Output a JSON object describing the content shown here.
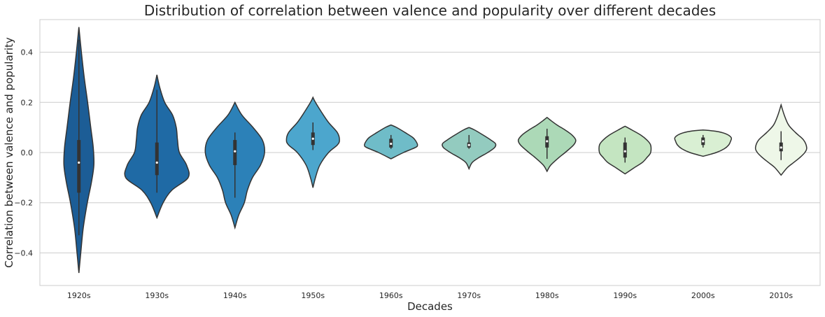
{
  "chart_data": {
    "type": "violin",
    "title": "Distribution of correlation between valence and popularity over different decades",
    "xlabel": "Decades",
    "ylabel": "Correlation between valence and popularity",
    "ylim": [
      -0.53,
      0.53
    ],
    "yticks": [
      -0.4,
      -0.2,
      0.0,
      0.2,
      0.4
    ],
    "ytick_labels": [
      "−0.4",
      "−0.2",
      "0.0",
      "0.2",
      "0.4"
    ],
    "grid": "horizontal",
    "categories": [
      "1920s",
      "1930s",
      "1940s",
      "1950s",
      "1960s",
      "1970s",
      "1980s",
      "1990s",
      "2000s",
      "2010s"
    ],
    "series": [
      {
        "category": "1920s",
        "color": "#1c5d96",
        "kde_min": -0.48,
        "kde_max": 0.5,
        "q1": -0.16,
        "median": -0.04,
        "q3": 0.05,
        "whisker_low": -0.33,
        "whisker_high": 0.45,
        "density": [
          [
            -0.48,
            0.0
          ],
          [
            -0.4,
            0.06
          ],
          [
            -0.3,
            0.14
          ],
          [
            -0.2,
            0.27
          ],
          [
            -0.12,
            0.4
          ],
          [
            -0.05,
            0.48
          ],
          [
            0.02,
            0.46
          ],
          [
            0.1,
            0.38
          ],
          [
            0.2,
            0.28
          ],
          [
            0.3,
            0.17
          ],
          [
            0.4,
            0.08
          ],
          [
            0.5,
            0.0
          ]
        ]
      },
      {
        "category": "1930s",
        "color": "#1f6aa5",
        "kde_min": -0.26,
        "kde_max": 0.31,
        "q1": -0.09,
        "median": -0.04,
        "q3": 0.04,
        "whisker_low": -0.16,
        "whisker_high": 0.25,
        "density": [
          [
            -0.26,
            0.0
          ],
          [
            -0.2,
            0.2
          ],
          [
            -0.15,
            0.48
          ],
          [
            -0.1,
            1.0
          ],
          [
            -0.05,
            0.95
          ],
          [
            0.0,
            0.72
          ],
          [
            0.05,
            0.66
          ],
          [
            0.1,
            0.62
          ],
          [
            0.15,
            0.5
          ],
          [
            0.2,
            0.25
          ],
          [
            0.26,
            0.09
          ],
          [
            0.31,
            0.0
          ]
        ]
      },
      {
        "category": "1940s",
        "color": "#2c81b8",
        "kde_min": -0.3,
        "kde_max": 0.2,
        "q1": -0.05,
        "median": 0.005,
        "q3": 0.05,
        "whisker_low": -0.18,
        "whisker_high": 0.08,
        "density": [
          [
            -0.3,
            0.0
          ],
          [
            -0.25,
            0.12
          ],
          [
            -0.2,
            0.3
          ],
          [
            -0.15,
            0.4
          ],
          [
            -0.1,
            0.56
          ],
          [
            -0.05,
            0.82
          ],
          [
            0.0,
            0.95
          ],
          [
            0.05,
            0.88
          ],
          [
            0.1,
            0.58
          ],
          [
            0.15,
            0.22
          ],
          [
            0.2,
            0.0
          ]
        ]
      },
      {
        "category": "1950s",
        "color": "#4ca6cd",
        "kde_min": -0.14,
        "kde_max": 0.22,
        "q1": 0.03,
        "median": 0.055,
        "q3": 0.08,
        "whisker_low": 0.01,
        "whisker_high": 0.12,
        "density": [
          [
            -0.14,
            0.0
          ],
          [
            -0.1,
            0.08
          ],
          [
            -0.05,
            0.22
          ],
          [
            0.0,
            0.5
          ],
          [
            0.03,
            0.78
          ],
          [
            0.05,
            0.85
          ],
          [
            0.08,
            0.78
          ],
          [
            0.12,
            0.5
          ],
          [
            0.16,
            0.28
          ],
          [
            0.2,
            0.08
          ],
          [
            0.22,
            0.0
          ]
        ]
      },
      {
        "category": "1960s",
        "color": "#6fbcc8",
        "kde_min": -0.025,
        "kde_max": 0.11,
        "q1": 0.02,
        "median": 0.035,
        "q3": 0.055,
        "whisker_low": 0.015,
        "whisker_high": 0.07,
        "density": [
          [
            -0.025,
            0.0
          ],
          [
            0.0,
            0.4
          ],
          [
            0.02,
            0.78
          ],
          [
            0.03,
            0.85
          ],
          [
            0.045,
            0.8
          ],
          [
            0.06,
            0.7
          ],
          [
            0.08,
            0.45
          ],
          [
            0.1,
            0.18
          ],
          [
            0.11,
            0.0
          ]
        ]
      },
      {
        "category": "1970s",
        "color": "#93cbbf",
        "kde_min": -0.065,
        "kde_max": 0.1,
        "q1": 0.02,
        "median": 0.03,
        "q3": 0.04,
        "whisker_low": 0.015,
        "whisker_high": 0.07,
        "density": [
          [
            -0.065,
            0.0
          ],
          [
            -0.04,
            0.1
          ],
          [
            -0.02,
            0.32
          ],
          [
            0.0,
            0.6
          ],
          [
            0.02,
            0.82
          ],
          [
            0.035,
            0.85
          ],
          [
            0.05,
            0.7
          ],
          [
            0.07,
            0.45
          ],
          [
            0.09,
            0.18
          ],
          [
            0.1,
            0.0
          ]
        ]
      },
      {
        "category": "1980s",
        "color": "#acd9b7",
        "kde_min": -0.075,
        "kde_max": 0.14,
        "q1": 0.02,
        "median": 0.045,
        "q3": 0.065,
        "whisker_low": -0.025,
        "whisker_high": 0.095,
        "density": [
          [
            -0.075,
            0.0
          ],
          [
            -0.05,
            0.12
          ],
          [
            -0.02,
            0.38
          ],
          [
            0.0,
            0.58
          ],
          [
            0.03,
            0.85
          ],
          [
            0.05,
            0.92
          ],
          [
            0.07,
            0.8
          ],
          [
            0.09,
            0.58
          ],
          [
            0.11,
            0.32
          ],
          [
            0.13,
            0.1
          ],
          [
            0.14,
            0.0
          ]
        ]
      },
      {
        "category": "1990s",
        "color": "#c4e5c1",
        "kde_min": -0.085,
        "kde_max": 0.105,
        "q1": -0.02,
        "median": 0.005,
        "q3": 0.04,
        "whisker_low": -0.04,
        "whisker_high": 0.06,
        "density": [
          [
            -0.085,
            0.0
          ],
          [
            -0.06,
            0.3
          ],
          [
            -0.04,
            0.55
          ],
          [
            -0.02,
            0.7
          ],
          [
            0.0,
            0.82
          ],
          [
            0.03,
            0.82
          ],
          [
            0.05,
            0.7
          ],
          [
            0.07,
            0.5
          ],
          [
            0.09,
            0.22
          ],
          [
            0.105,
            0.0
          ]
        ]
      },
      {
        "category": "2000s",
        "color": "#d9efd3",
        "kde_min": -0.015,
        "kde_max": 0.09,
        "q1": 0.03,
        "median": 0.045,
        "q3": 0.06,
        "whisker_low": 0.02,
        "whisker_high": 0.07,
        "density": [
          [
            -0.015,
            0.0
          ],
          [
            0.0,
            0.42
          ],
          [
            0.015,
            0.68
          ],
          [
            0.03,
            0.82
          ],
          [
            0.045,
            0.88
          ],
          [
            0.06,
            0.9
          ],
          [
            0.075,
            0.72
          ],
          [
            0.085,
            0.4
          ],
          [
            0.09,
            0.0
          ]
        ]
      },
      {
        "category": "2010s",
        "color": "#eef7e8",
        "kde_min": -0.09,
        "kde_max": 0.19,
        "q1": 0.005,
        "median": 0.02,
        "q3": 0.04,
        "whisker_low": -0.03,
        "whisker_high": 0.085,
        "density": [
          [
            -0.09,
            0.0
          ],
          [
            -0.06,
            0.2
          ],
          [
            -0.04,
            0.4
          ],
          [
            -0.02,
            0.6
          ],
          [
            0.0,
            0.76
          ],
          [
            0.02,
            0.82
          ],
          [
            0.05,
            0.72
          ],
          [
            0.08,
            0.46
          ],
          [
            0.11,
            0.24
          ],
          [
            0.15,
            0.1
          ],
          [
            0.19,
            0.0
          ]
        ]
      }
    ]
  }
}
